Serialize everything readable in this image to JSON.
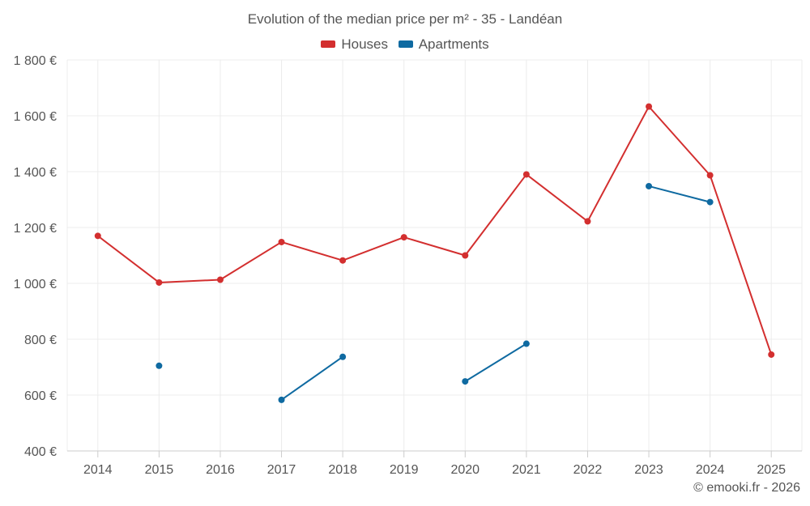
{
  "chart_data": {
    "type": "line",
    "title": "Evolution of the median price per m² - 35 - Landéan",
    "categories": [
      "2014",
      "2015",
      "2016",
      "2017",
      "2018",
      "2019",
      "2020",
      "2021",
      "2022",
      "2023",
      "2024",
      "2025"
    ],
    "y_ticks": [
      400,
      600,
      800,
      1000,
      1200,
      1400,
      1600,
      1800
    ],
    "y_tick_labels": [
      "400 €",
      "600 €",
      "800 €",
      "1 000 €",
      "1 200 €",
      "1 400 €",
      "1 600 €",
      "1 800 €"
    ],
    "ylim": [
      400,
      1800
    ],
    "grid": true,
    "legend_position": "top-center",
    "series": [
      {
        "name": "Houses",
        "color": "#d32f2f",
        "values": [
          1170,
          1003,
          1013,
          1148,
          1082,
          1165,
          1100,
          1390,
          1222,
          1633,
          1387,
          745
        ]
      },
      {
        "name": "Apartments",
        "color": "#0f6aa1",
        "values": [
          null,
          705,
          null,
          583,
          737,
          null,
          649,
          784,
          null,
          1348,
          1291,
          null
        ]
      }
    ]
  },
  "footer": {
    "copyright": "© emooki.fr - 2026"
  }
}
